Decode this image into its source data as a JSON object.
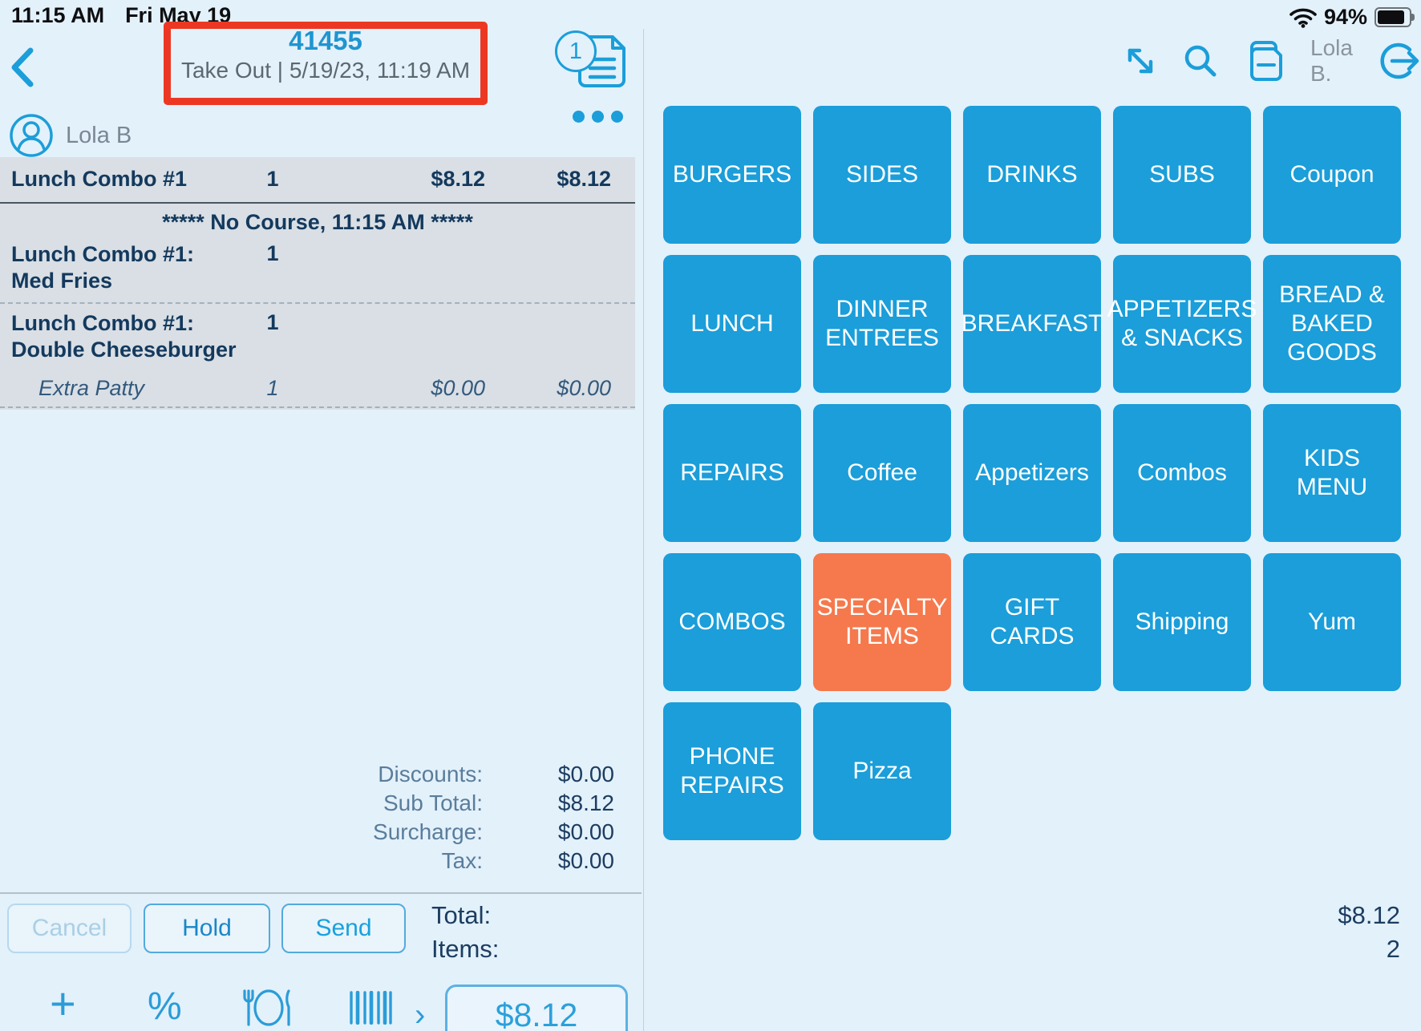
{
  "status_bar": {
    "time": "11:15 AM",
    "date": "Fri May 19",
    "battery_percent": "94%"
  },
  "header": {
    "order_number": "41455",
    "order_subtitle": "Take Out | 5/19/23, 11:19 AM",
    "doc_badge_count": "1",
    "user_short": "Lola B.",
    "icons": [
      "expand-icon",
      "search-icon",
      "documents-icon",
      "logout-icon"
    ]
  },
  "order": {
    "customer_name": "Lola B",
    "header_row": {
      "name": "Lunch Combo #1",
      "qty": "1",
      "price": "$8.12",
      "total": "$8.12"
    },
    "course_header": "***** No Course, 11:15 AM *****",
    "items": [
      {
        "line1": "Lunch Combo #1:",
        "line2": "Med Fries",
        "qty": "1",
        "modifiers": []
      },
      {
        "line1": "Lunch Combo #1:",
        "line2": "Double Cheeseburger",
        "qty": "1",
        "modifiers": [
          {
            "name": "Extra Patty",
            "qty": "1",
            "price": "$0.00",
            "total": "$0.00"
          }
        ]
      }
    ],
    "totals": [
      {
        "label": "Discounts:",
        "value": "$0.00"
      },
      {
        "label": "Sub Total:",
        "value": "$8.12"
      },
      {
        "label": "Surcharge:",
        "value": "$0.00"
      },
      {
        "label": "Tax:",
        "value": "$0.00"
      }
    ],
    "actions": {
      "cancel": "Cancel",
      "hold": "Hold",
      "send": "Send"
    },
    "summary": {
      "total_label": "Total:",
      "total_value": "$8.12",
      "items_label": "Items:",
      "items_value": "2"
    },
    "pay_amount": "$8.12",
    "toolbar_icons": [
      "add-icon",
      "percent-icon",
      "dining-icon",
      "barcode-icon",
      "chevron-right-icon"
    ]
  },
  "menu_grid": {
    "tiles": [
      {
        "label": "BURGERS",
        "row": 0,
        "col": 0,
        "variant": "blue"
      },
      {
        "label": "SIDES",
        "row": 0,
        "col": 1,
        "variant": "blue"
      },
      {
        "label": "DRINKS",
        "row": 0,
        "col": 2,
        "variant": "blue"
      },
      {
        "label": "SUBS",
        "row": 0,
        "col": 3,
        "variant": "blue"
      },
      {
        "label": "Coupon",
        "row": 0,
        "col": 4,
        "variant": "blue"
      },
      {
        "label": "LUNCH",
        "row": 1,
        "col": 0,
        "variant": "blue"
      },
      {
        "label": "DINNER ENTREES",
        "row": 1,
        "col": 1,
        "variant": "blue"
      },
      {
        "label": "BREAKFAST",
        "row": 1,
        "col": 2,
        "variant": "blue"
      },
      {
        "label": "APPETIZERS & SNACKS",
        "row": 1,
        "col": 3,
        "variant": "blue"
      },
      {
        "label": "BREAD & BAKED GOODS",
        "row": 1,
        "col": 4,
        "variant": "blue"
      },
      {
        "label": "REPAIRS",
        "row": 2,
        "col": 0,
        "variant": "blue"
      },
      {
        "label": "Coffee",
        "row": 2,
        "col": 1,
        "variant": "blue"
      },
      {
        "label": "Appetizers",
        "row": 2,
        "col": 2,
        "variant": "blue"
      },
      {
        "label": "Combos",
        "row": 2,
        "col": 3,
        "variant": "blue"
      },
      {
        "label": "KIDS MENU",
        "row": 2,
        "col": 4,
        "variant": "blue"
      },
      {
        "label": "COMBOS",
        "row": 3,
        "col": 0,
        "variant": "blue"
      },
      {
        "label": "SPECIALTY ITEMS",
        "row": 3,
        "col": 1,
        "variant": "orange"
      },
      {
        "label": "GIFT CARDS",
        "row": 3,
        "col": 2,
        "variant": "blue"
      },
      {
        "label": "Shipping",
        "row": 3,
        "col": 3,
        "variant": "blue"
      },
      {
        "label": "Yum",
        "row": 3,
        "col": 4,
        "variant": "blue"
      },
      {
        "label": "PHONE REPAIRS",
        "row": 4,
        "col": 0,
        "variant": "blue"
      },
      {
        "label": "Pizza",
        "row": 4,
        "col": 1,
        "variant": "blue"
      }
    ]
  },
  "colors": {
    "accent_blue": "#1b9ed9",
    "tile_blue": "#1b9ed9",
    "tile_orange": "#f5794d",
    "highlight_red": "#ec3823",
    "navy_text": "#14395d",
    "background": "#e3f1fb"
  }
}
